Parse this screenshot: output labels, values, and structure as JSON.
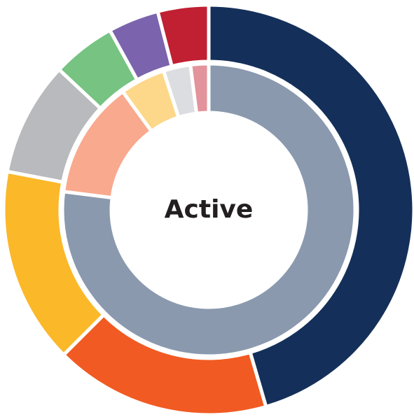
{
  "chart_data": {
    "type": "donut",
    "center_label": "Active",
    "rings": [
      {
        "values": [
          45.5,
          17,
          15.5,
          9,
          5,
          4,
          4
        ],
        "colors": [
          "#14305a",
          "#f15a22",
          "#fbb829",
          "#b9babd",
          "#76c382",
          "#7b64ad",
          "#c11f32"
        ]
      },
      {
        "values": [
          77,
          13,
          5,
          3,
          2
        ],
        "colors": [
          "#8a99ae",
          "#f9a98e",
          "#fdd88a",
          "#dcdde0",
          "#e2939b"
        ]
      }
    ]
  }
}
